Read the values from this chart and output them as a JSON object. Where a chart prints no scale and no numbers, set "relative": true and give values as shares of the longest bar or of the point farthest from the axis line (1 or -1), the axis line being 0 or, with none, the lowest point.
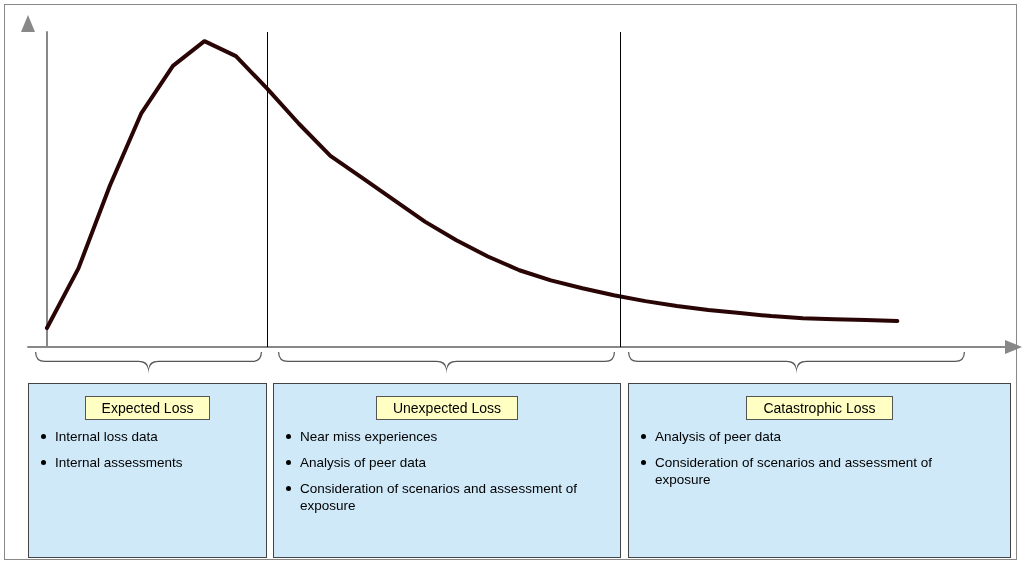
{
  "chart_data": [
    {
      "type": "line",
      "categories": [
        null,
        null,
        null,
        null,
        null,
        null,
        null,
        null,
        null,
        null,
        null,
        null,
        null,
        null,
        null,
        null,
        null,
        null,
        null,
        null,
        null,
        null,
        null,
        null,
        null,
        null,
        null,
        null
      ],
      "values": [
        0.062,
        0.257,
        0.528,
        0.765,
        0.919,
        1,
        0.951,
        0.844,
        0.73,
        0.625,
        0.554,
        0.482,
        0.41,
        0.349,
        0.296,
        0.251,
        0.218,
        0.192,
        0.169,
        0.15,
        0.134,
        0.121,
        0.111,
        0.101,
        0.094,
        0.091,
        0.088,
        0.085
      ],
      "color": "#2a0505",
      "relative": true,
      "marker": "none",
      "line_style": "solid"
    },
    {
      "type": "other",
      "title": "Expected Loss",
      "annotations": [
        "Internal loss data",
        "Internal assessments"
      ]
    },
    {
      "type": "other",
      "title": "Unexpected Loss",
      "annotations": [
        "Near miss experiences",
        "Analysis of peer data",
        "Consideration of scenarios and assessment of exposure"
      ]
    },
    {
      "type": "other",
      "title": "Catastrophic Loss",
      "annotations": [
        "Analysis of peer data",
        "Consideration of scenarios and assessment of exposure"
      ]
    }
  ]
}
